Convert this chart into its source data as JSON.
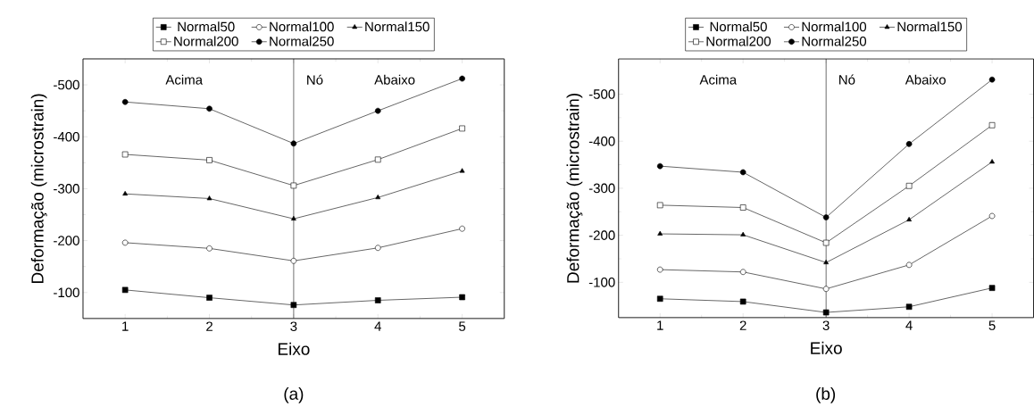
{
  "chart_data": [
    {
      "type": "line",
      "title": "(a)",
      "xlabel": "Eixo",
      "ylabel": "Deformação (microstrain)",
      "x": [
        1,
        2,
        3,
        4,
        5
      ],
      "xlim": [
        0.5,
        5.5
      ],
      "xticks": [
        1,
        2,
        3,
        4,
        5
      ],
      "ylim": [
        -50,
        -550
      ],
      "yticks": [
        -100,
        -200,
        -300,
        -400,
        -500
      ],
      "legend": "top",
      "line_style": "solid",
      "annotations": [
        "Acima",
        "Nó",
        "Abaixo"
      ],
      "ref_lines": [
        {
          "axis": "x",
          "value": 3,
          "color": "#000000"
        }
      ],
      "series": [
        {
          "name": "Normal50",
          "color": "#000000",
          "marker": "square",
          "values": [
            -105,
            -90,
            -76,
            -85,
            -91
          ]
        },
        {
          "name": "Normal100",
          "color": "#000000",
          "marker": "circle",
          "values": [
            -196,
            -185,
            -161,
            -186,
            -223
          ]
        },
        {
          "name": "Normal150",
          "color": "#000000",
          "marker": "triangle",
          "values": [
            -290,
            -281,
            -242,
            -283,
            -334
          ]
        },
        {
          "name": "Normal200",
          "color": "#000000",
          "marker": "square",
          "values": [
            -366,
            -355,
            -306,
            -356,
            -416
          ]
        },
        {
          "name": "Normal250",
          "color": "#000000",
          "marker": "circle",
          "values": [
            -467,
            -454,
            -387,
            -450,
            -512
          ]
        }
      ]
    },
    {
      "type": "line",
      "title": "(b)",
      "xlabel": "Eixo",
      "ylabel": "Deformação (microstrain)",
      "x": [
        1,
        2,
        3,
        4,
        5
      ],
      "xlim": [
        0.5,
        5.5
      ],
      "xticks": [
        1,
        2,
        3,
        4,
        5
      ],
      "ylim": [
        -25,
        -575
      ],
      "yticks": [
        -100,
        -200,
        -300,
        -400,
        -500
      ],
      "legend": "top",
      "line_style": "solid",
      "annotations": [
        "Acima",
        "Nó",
        "Abaixo"
      ],
      "ref_lines": [
        {
          "axis": "x",
          "value": 3,
          "color": "#000000"
        }
      ],
      "series": [
        {
          "name": "Normal50",
          "color": "#000000",
          "marker": "square",
          "values": [
            -65,
            -59,
            -36,
            -48,
            -88
          ]
        },
        {
          "name": "Normal100",
          "color": "#000000",
          "marker": "circle",
          "values": [
            -127,
            -122,
            -86,
            -137,
            -241
          ]
        },
        {
          "name": "Normal150",
          "color": "#000000",
          "marker": "triangle",
          "values": [
            -203,
            -201,
            -142,
            -233,
            -356
          ]
        },
        {
          "name": "Normal200",
          "color": "#000000",
          "marker": "square",
          "values": [
            -264,
            -259,
            -184,
            -305,
            -434
          ]
        },
        {
          "name": "Normal250",
          "color": "#000000",
          "marker": "circle",
          "values": [
            -347,
            -334,
            -238,
            -394,
            -531
          ]
        }
      ]
    }
  ]
}
